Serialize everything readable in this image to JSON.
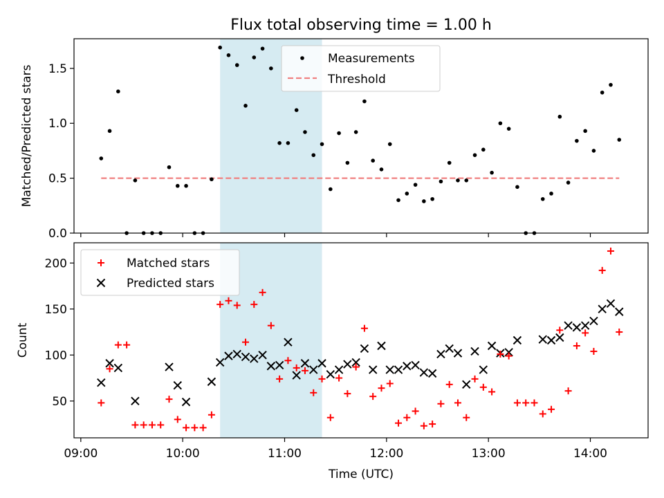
{
  "chart_data": [
    {
      "type": "scatter",
      "title": "Flux total observing time = 1.00 h",
      "xlabel": "",
      "ylabel": "Matched/Predicted stars",
      "xlim": [
        "08:56",
        "14:34"
      ],
      "ylim": [
        0.0,
        1.77
      ],
      "yticks": [
        0.0,
        0.5,
        1.0,
        1.5
      ],
      "ytick_labels": [
        "0.0",
        "0.5",
        "1.0",
        "1.5"
      ],
      "shaded_span": [
        "10:22",
        "11:22"
      ],
      "shade_color": "#add8e6",
      "legend_position": "upper center",
      "series": [
        {
          "name": "Measurements",
          "marker": "dot",
          "color": "#000000",
          "x": [
            "09:12",
            "09:17",
            "09:22",
            "09:27",
            "09:32",
            "09:37",
            "09:42",
            "09:47",
            "09:52",
            "09:57",
            "10:02",
            "10:07",
            "10:12",
            "10:17",
            "10:22",
            "10:27",
            "10:32",
            "10:37",
            "10:42",
            "10:47",
            "10:52",
            "10:57",
            "11:02",
            "11:07",
            "11:12",
            "11:17",
            "11:22",
            "11:27",
            "11:32",
            "11:37",
            "11:42",
            "11:47",
            "11:52",
            "11:57",
            "12:02",
            "12:07",
            "12:12",
            "12:17",
            "12:22",
            "12:27",
            "12:32",
            "12:37",
            "12:42",
            "12:47",
            "12:52",
            "12:57",
            "13:02",
            "13:07",
            "13:12",
            "13:17",
            "13:22",
            "13:27",
            "13:32",
            "13:37",
            "13:42",
            "13:47",
            "13:52",
            "13:57",
            "14:02",
            "14:07",
            "14:12",
            "14:17"
          ],
          "y": [
            0.68,
            0.93,
            1.29,
            0.0,
            0.48,
            0.0,
            0.0,
            0.0,
            0.6,
            0.43,
            0.43,
            0.0,
            0.0,
            0.49,
            1.69,
            1.62,
            1.53,
            1.16,
            1.6,
            1.68,
            1.5,
            0.82,
            0.82,
            1.12,
            0.92,
            0.71,
            0.81,
            0.4,
            0.91,
            0.64,
            0.92,
            1.2,
            0.66,
            0.58,
            0.81,
            0.3,
            0.36,
            0.44,
            0.29,
            0.31,
            0.47,
            0.64,
            0.48,
            0.48,
            0.71,
            0.76,
            0.55,
            1.0,
            0.95,
            0.42,
            0.0,
            0.0,
            0.31,
            0.36,
            1.06,
            0.46,
            0.84,
            0.93,
            0.75,
            1.28,
            1.35,
            0.85
          ]
        },
        {
          "name": "Threshold",
          "marker": "dashed-line",
          "color": "#f08080",
          "x": [
            "09:12",
            "14:17"
          ],
          "y": [
            0.5,
            0.5
          ]
        }
      ]
    },
    {
      "type": "scatter",
      "title": "",
      "xlabel": "Time (UTC)",
      "ylabel": "Count",
      "xlim": [
        "08:56",
        "14:34"
      ],
      "ylim": [
        10,
        222
      ],
      "yticks": [
        50,
        100,
        150,
        200
      ],
      "ytick_labels": [
        "50",
        "100",
        "150",
        "200"
      ],
      "xticks": [
        "09:00",
        "10:00",
        "11:00",
        "12:00",
        "13:00",
        "14:00"
      ],
      "xtick_labels": [
        "09:00",
        "10:00",
        "11:00",
        "12:00",
        "13:00",
        "14:00"
      ],
      "shaded_span": [
        "10:22",
        "11:22"
      ],
      "shade_color": "#add8e6",
      "legend_position": "upper left",
      "series": [
        {
          "name": "Matched stars",
          "marker": "plus",
          "color": "#ff0000",
          "x": [
            "09:12",
            "09:17",
            "09:22",
            "09:27",
            "09:32",
            "09:37",
            "09:42",
            "09:47",
            "09:52",
            "09:57",
            "10:02",
            "10:07",
            "10:12",
            "10:17",
            "10:22",
            "10:27",
            "10:32",
            "10:37",
            "10:42",
            "10:47",
            "10:52",
            "10:57",
            "11:02",
            "11:07",
            "11:12",
            "11:17",
            "11:22",
            "11:27",
            "11:32",
            "11:37",
            "11:42",
            "11:47",
            "11:52",
            "11:57",
            "12:02",
            "12:07",
            "12:12",
            "12:17",
            "12:22",
            "12:27",
            "12:32",
            "12:37",
            "12:42",
            "12:47",
            "12:52",
            "12:57",
            "13:02",
            "13:07",
            "13:12",
            "13:17",
            "13:22",
            "13:27",
            "13:32",
            "13:37",
            "13:42",
            "13:47",
            "13:52",
            "13:57",
            "14:02",
            "14:07",
            "14:12",
            "14:17"
          ],
          "y": [
            48,
            85,
            111,
            111,
            24,
            24,
            24,
            24,
            52,
            30,
            21,
            21,
            21,
            35,
            155,
            159,
            154,
            114,
            155,
            168,
            132,
            74,
            94,
            86,
            83,
            59,
            74,
            32,
            75,
            58,
            87,
            129,
            55,
            64,
            69,
            26,
            32,
            39,
            23,
            25,
            47,
            68,
            48,
            32,
            74,
            65,
            60,
            101,
            99,
            48,
            48,
            48,
            36,
            41,
            127,
            61,
            110,
            124,
            104,
            192,
            213,
            125
          ]
        },
        {
          "name": "Predicted stars",
          "marker": "x",
          "color": "#000000",
          "x": [
            "09:12",
            "09:17",
            "09:22",
            "09:32",
            "09:52",
            "09:57",
            "10:02",
            "10:17",
            "10:22",
            "10:27",
            "10:32",
            "10:37",
            "10:42",
            "10:47",
            "10:52",
            "10:57",
            "11:02",
            "11:07",
            "11:12",
            "11:17",
            "11:22",
            "11:27",
            "11:32",
            "11:37",
            "11:42",
            "11:47",
            "11:52",
            "11:57",
            "12:02",
            "12:07",
            "12:12",
            "12:17",
            "12:22",
            "12:27",
            "12:32",
            "12:37",
            "12:42",
            "12:47",
            "12:52",
            "12:57",
            "13:02",
            "13:07",
            "13:12",
            "13:17",
            "13:32",
            "13:37",
            "13:42",
            "13:47",
            "13:52",
            "13:57",
            "14:02",
            "14:07",
            "14:12",
            "14:17"
          ],
          "y": [
            70,
            91,
            86,
            50,
            87,
            67,
            49,
            71,
            92,
            99,
            101,
            98,
            96,
            100,
            88,
            89,
            114,
            78,
            91,
            84,
            91,
            79,
            84,
            90,
            92,
            107,
            84,
            110,
            84,
            84,
            88,
            89,
            81,
            80,
            101,
            107,
            102,
            68,
            104,
            84,
            110,
            102,
            103,
            116,
            117,
            116,
            119,
            132,
            130,
            132,
            137,
            150,
            156,
            147
          ]
        }
      ]
    }
  ]
}
